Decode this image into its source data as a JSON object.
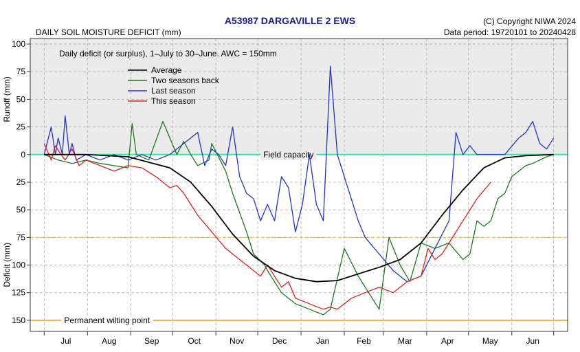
{
  "header": {
    "title": "A53987  DARGAVILLE 2 EWS",
    "subtitle": "DAILY SOIL MOISTURE DEFICIT (mm)",
    "copyright": "(C) Copyright NIWA  2024",
    "period": "Data period:  19720101  to  20240428"
  },
  "colors": {
    "average": "#000000",
    "two_seasons_back": "#1a7a1a",
    "last_season": "#2233cc",
    "this_season": "#e02020",
    "field_capacity": "#40e0a0",
    "wilting_point": "#f0b040",
    "deficit_75": "#f0c040",
    "plot_background": "#ebebeb"
  },
  "chart_data": {
    "type": "line",
    "annotation": "Daily deficit (or surplus), 1–July to 30–June.  AWC = 150mm",
    "ylabel_top": "Runoff (mm)",
    "ylabel_bottom": "Deficit (mm)",
    "ylim": [
      -105,
      160
    ],
    "yticks": [
      -100,
      -75,
      -50,
      -25,
      0,
      25,
      50,
      75,
      100,
      125,
      150
    ],
    "ytick_labels": [
      "100",
      "75",
      "50",
      "25",
      "0",
      "25",
      "50",
      "75",
      "100",
      "125",
      "150"
    ],
    "months": [
      "Jul",
      "Aug",
      "Sep",
      "Oct",
      "Nov",
      "Dec",
      "Jan",
      "Feb",
      "Mar",
      "Apr",
      "May",
      "Jun"
    ],
    "x_unit": "day of season (0 = 1 July)",
    "xlim": [
      -10,
      375
    ],
    "reference_lines": [
      {
        "name": "Field capacity",
        "value": 0
      },
      {
        "name": "",
        "value": 75
      },
      {
        "name": "Permanent wilting point",
        "value": 150
      }
    ],
    "grid": true,
    "legend_position": "top-left",
    "series": [
      {
        "name": "Average",
        "x": [
          0,
          30,
          60,
          90,
          105,
          120,
          135,
          150,
          165,
          180,
          195,
          210,
          225,
          240,
          255,
          270,
          285,
          300,
          315,
          330,
          345,
          365
        ],
        "y": [
          0,
          0,
          2,
          12,
          25,
          47,
          72,
          92,
          105,
          112,
          115,
          114,
          108,
          102,
          95,
          80,
          55,
          32,
          12,
          3,
          1,
          0
        ]
      },
      {
        "name": "Two seasons back",
        "x": [
          0,
          10,
          20,
          30,
          40,
          50,
          60,
          63,
          66,
          75,
          85,
          95,
          100,
          105,
          110,
          118,
          120,
          130,
          135,
          145,
          150,
          158,
          160,
          170,
          180,
          190,
          200,
          205,
          215,
          225,
          235,
          240,
          247,
          255,
          262,
          270,
          280,
          290,
          300,
          305,
          310,
          315,
          320,
          325,
          330,
          335,
          340,
          345,
          350,
          355,
          360,
          365
        ],
        "y": [
          0,
          5,
          8,
          5,
          8,
          10,
          12,
          -28,
          0,
          5,
          -30,
          0,
          -12,
          0,
          10,
          5,
          -10,
          15,
          35,
          70,
          90,
          100,
          105,
          125,
          135,
          140,
          145,
          140,
          85,
          110,
          130,
          140,
          75,
          100,
          115,
          80,
          85,
          80,
          95,
          90,
          60,
          65,
          60,
          40,
          35,
          20,
          15,
          10,
          8,
          5,
          2,
          0
        ]
      },
      {
        "name": "Last season",
        "x": [
          0,
          5,
          8,
          10,
          13,
          15,
          18,
          20,
          23,
          30,
          40,
          50,
          60,
          70,
          80,
          90,
          100,
          110,
          115,
          120,
          125,
          130,
          135,
          140,
          145,
          150,
          155,
          160,
          165,
          170,
          175,
          180,
          185,
          190,
          195,
          200,
          205,
          210,
          215,
          225,
          230,
          240,
          250,
          260,
          270,
          280,
          290,
          295,
          300,
          305,
          310,
          315,
          320,
          330,
          340,
          345,
          350,
          355,
          360,
          365
        ],
        "y": [
          0,
          -25,
          0,
          -15,
          0,
          -35,
          0,
          -10,
          5,
          0,
          5,
          0,
          5,
          0,
          5,
          0,
          -10,
          -20,
          10,
          -5,
          0,
          10,
          -25,
          20,
          35,
          40,
          60,
          45,
          60,
          20,
          30,
          70,
          45,
          0,
          45,
          60,
          -80,
          0,
          20,
          60,
          75,
          90,
          105,
          115,
          110,
          85,
          60,
          -20,
          0,
          -8,
          0,
          0,
          0,
          0,
          -15,
          -20,
          -30,
          -10,
          -5,
          -15
        ]
      },
      {
        "name": "This season",
        "x": [
          0,
          5,
          8,
          12,
          15,
          20,
          25,
          30,
          40,
          50,
          60,
          70,
          80,
          90,
          95,
          100,
          110,
          120,
          130,
          140,
          150,
          155,
          160,
          170,
          175,
          180,
          190,
          200,
          205,
          210,
          220,
          230,
          240,
          250,
          260,
          270,
          275,
          280,
          285,
          290,
          300,
          310,
          320
        ],
        "y": [
          -10,
          5,
          -8,
          0,
          5,
          -5,
          10,
          5,
          10,
          15,
          10,
          12,
          20,
          30,
          28,
          35,
          55,
          70,
          85,
          95,
          105,
          110,
          100,
          120,
          115,
          130,
          135,
          140,
          138,
          140,
          130,
          125,
          120,
          125,
          115,
          110,
          85,
          95,
          90,
          80,
          60,
          40,
          25
        ]
      }
    ]
  }
}
